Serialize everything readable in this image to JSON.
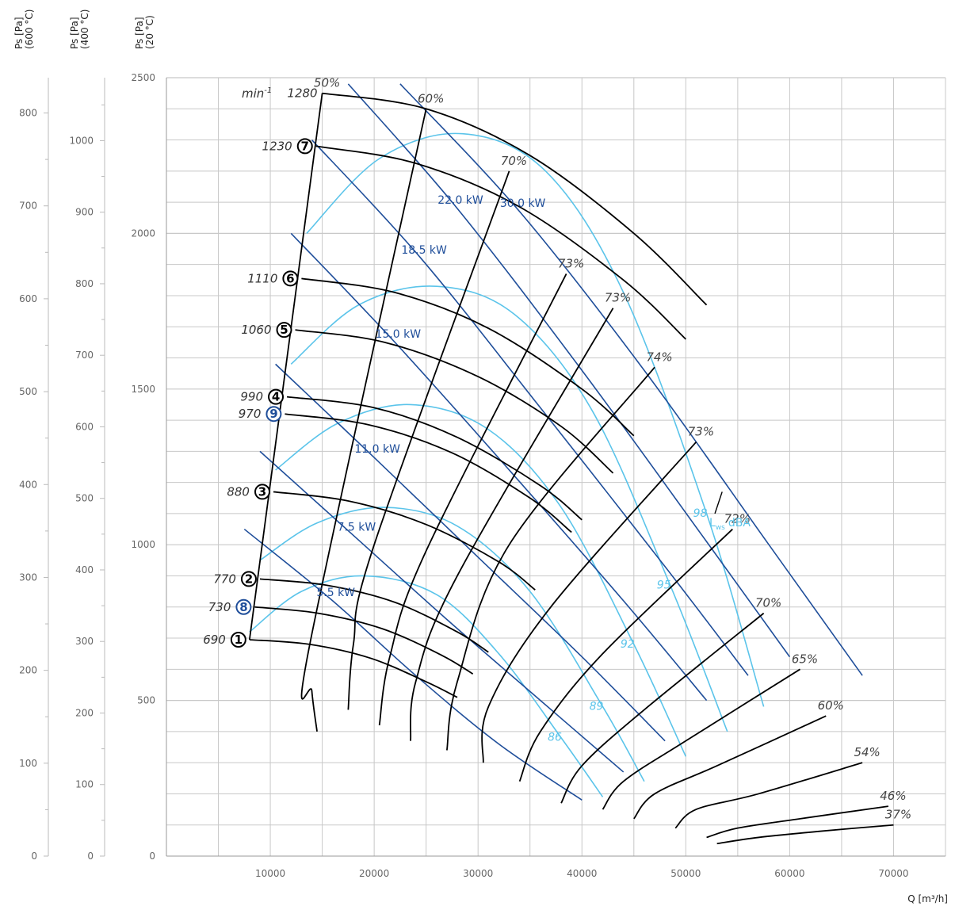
{
  "chart_data": {
    "type": "line",
    "title": "",
    "xlabel": "Q [m³/h]",
    "x_ticks": [
      "10000",
      "20000",
      "30000",
      "40000",
      "50000",
      "60000",
      "70000"
    ],
    "xlim": [
      0,
      75000
    ],
    "y_axes": [
      {
        "label_line1": "Ps [Pa]",
        "label_line2": "(20 °C)",
        "ylim": [
          0,
          2500
        ],
        "ticks": [
          "0",
          "500",
          "1000",
          "1500",
          "2000",
          "2500"
        ]
      },
      {
        "label_line1": "Ps [Pa]",
        "label_line2": "(400 °C)",
        "ylim": [
          0,
          1088
        ],
        "ticks": [
          "0",
          "100",
          "200",
          "300",
          "400",
          "500",
          "600",
          "700",
          "800",
          "900",
          "1000"
        ]
      },
      {
        "label_line1": "Ps [Pa]",
        "label_line2": "(600 °C)",
        "ylim": [
          0,
          838
        ],
        "ticks": [
          "0",
          "100",
          "200",
          "300",
          "400",
          "500",
          "600",
          "700",
          "800"
        ]
      }
    ],
    "rpm_unit": "min",
    "rpm_unit_exp": "-1",
    "rpm_curves": [
      {
        "marker": "",
        "rpm": "1280",
        "color": "#000000",
        "points": [
          [
            15000,
            2450
          ],
          [
            25000,
            2400
          ],
          [
            35000,
            2250
          ],
          [
            45000,
            2000
          ],
          [
            52000,
            1770
          ]
        ]
      },
      {
        "marker": "7",
        "rpm": "1230",
        "color": "#000000",
        "points": [
          [
            14400,
            2280
          ],
          [
            24000,
            2225
          ],
          [
            34000,
            2085
          ],
          [
            44000,
            1850
          ],
          [
            50000,
            1660
          ]
        ]
      },
      {
        "marker": "6",
        "rpm": "1110",
        "color": "#000000",
        "points": [
          [
            13000,
            1855
          ],
          [
            22000,
            1810
          ],
          [
            31000,
            1695
          ],
          [
            40000,
            1500
          ],
          [
            45000,
            1350
          ]
        ]
      },
      {
        "marker": "5",
        "rpm": "1060",
        "color": "#000000",
        "points": [
          [
            12400,
            1690
          ],
          [
            21000,
            1650
          ],
          [
            30000,
            1540
          ],
          [
            38000,
            1380
          ],
          [
            43000,
            1230
          ]
        ]
      },
      {
        "marker": "4",
        "rpm": "990",
        "color": "#000000",
        "points": [
          [
            11600,
            1475
          ],
          [
            20000,
            1440
          ],
          [
            28000,
            1345
          ],
          [
            36000,
            1190
          ],
          [
            40000,
            1080
          ]
        ]
      },
      {
        "marker": "9",
        "rpm": "970",
        "color": "#1f4e9a",
        "points": [
          [
            11400,
            1420
          ],
          [
            19500,
            1385
          ],
          [
            27500,
            1295
          ],
          [
            35000,
            1150
          ],
          [
            39000,
            1040
          ]
        ]
      },
      {
        "marker": "3",
        "rpm": "880",
        "color": "#000000",
        "points": [
          [
            10300,
            1170
          ],
          [
            17600,
            1140
          ],
          [
            25000,
            1065
          ],
          [
            32000,
            945
          ],
          [
            35500,
            855
          ]
        ]
      },
      {
        "marker": "2",
        "rpm": "770",
        "color": "#000000",
        "points": [
          [
            9000,
            890
          ],
          [
            15400,
            870
          ],
          [
            22000,
            815
          ],
          [
            28000,
            720
          ],
          [
            31000,
            655
          ]
        ]
      },
      {
        "marker": "8",
        "rpm": "730",
        "color": "#1f4e9a",
        "points": [
          [
            8500,
            800
          ],
          [
            14600,
            780
          ],
          [
            20800,
            730
          ],
          [
            26500,
            645
          ],
          [
            29500,
            585
          ]
        ]
      },
      {
        "marker": "1",
        "rpm": "690",
        "color": "#000000",
        "points": [
          [
            8000,
            695
          ],
          [
            13800,
            680
          ],
          [
            19700,
            635
          ],
          [
            25000,
            560
          ],
          [
            28000,
            510
          ]
        ]
      }
    ],
    "efficiency_curves": [
      {
        "label": "50%",
        "points": [
          [
            15000,
            2450
          ],
          [
            8000,
            695
          ]
        ]
      },
      {
        "label": "60%",
        "points": [
          [
            25000,
            2400
          ],
          [
            13800,
            680
          ],
          [
            14000,
            530
          ],
          [
            14500,
            400
          ]
        ]
      },
      {
        "label": "70%",
        "points": [
          [
            33000,
            2200
          ],
          [
            20000,
            1000
          ],
          [
            18000,
            680
          ],
          [
            17500,
            470
          ]
        ]
      },
      {
        "label": "73%",
        "points": [
          [
            38500,
            1870
          ],
          [
            25000,
            980
          ],
          [
            21500,
            640
          ],
          [
            20500,
            420
          ]
        ]
      },
      {
        "label": "73%",
        "points": [
          [
            43000,
            1760
          ],
          [
            28000,
            900
          ],
          [
            24000,
            560
          ],
          [
            23500,
            370
          ]
        ]
      },
      {
        "label": "74%",
        "points": [
          [
            47000,
            1570
          ],
          [
            33000,
            1000
          ],
          [
            28000,
            560
          ],
          [
            27000,
            340
          ]
        ]
      },
      {
        "label": "73%",
        "points": [
          [
            51000,
            1330
          ],
          [
            37000,
            800
          ],
          [
            31000,
            480
          ],
          [
            30500,
            300
          ]
        ]
      },
      {
        "label": "72%",
        "points": [
          [
            54500,
            1050
          ],
          [
            42000,
            650
          ],
          [
            36000,
            400
          ],
          [
            34000,
            240
          ]
        ]
      },
      {
        "label": "70%",
        "points": [
          [
            57500,
            780
          ],
          [
            46000,
            470
          ],
          [
            40000,
            290
          ],
          [
            38000,
            170
          ]
        ]
      },
      {
        "label": "65%",
        "points": [
          [
            61000,
            600
          ],
          [
            50000,
            370
          ],
          [
            44000,
            240
          ],
          [
            42000,
            150
          ]
        ]
      },
      {
        "label": "60%",
        "points": [
          [
            63500,
            450
          ],
          [
            53000,
            290
          ],
          [
            47000,
            200
          ],
          [
            45000,
            120
          ]
        ]
      },
      {
        "label": "54%",
        "points": [
          [
            67000,
            300
          ],
          [
            57000,
            200
          ],
          [
            51000,
            150
          ],
          [
            49000,
            90
          ]
        ]
      },
      {
        "label": "46%",
        "points": [
          [
            69500,
            160
          ],
          [
            61000,
            120
          ],
          [
            55000,
            90
          ],
          [
            52000,
            60
          ]
        ]
      },
      {
        "label": "37%",
        "points": [
          [
            70000,
            100
          ],
          [
            63000,
            80
          ],
          [
            57000,
            60
          ],
          [
            53000,
            40
          ]
        ]
      }
    ],
    "power_lines": [
      {
        "label": "5.5 kW",
        "points": [
          [
            7500,
            1050
          ],
          [
            16000,
            820
          ],
          [
            24000,
            580
          ],
          [
            32000,
            360
          ],
          [
            40000,
            180
          ]
        ]
      },
      {
        "label": "7.5 kW",
        "points": [
          [
            9000,
            1300
          ],
          [
            18000,
            1030
          ],
          [
            27000,
            760
          ],
          [
            36000,
            500
          ],
          [
            44000,
            270
          ]
        ]
      },
      {
        "label": "11.0 kW",
        "points": [
          [
            10500,
            1580
          ],
          [
            20000,
            1280
          ],
          [
            30000,
            960
          ],
          [
            40000,
            640
          ],
          [
            48000,
            370
          ]
        ]
      },
      {
        "label": "15.0 kW",
        "points": [
          [
            12000,
            2000
          ],
          [
            22000,
            1650
          ],
          [
            33000,
            1240
          ],
          [
            44000,
            820
          ],
          [
            52000,
            500
          ]
        ]
      },
      {
        "label": "18.5 kW",
        "points": [
          [
            14000,
            2300
          ],
          [
            24500,
            1920
          ],
          [
            36000,
            1440
          ],
          [
            48000,
            930
          ],
          [
            56000,
            580
          ]
        ]
      },
      {
        "label": "22.0 kW",
        "points": [
          [
            17500,
            2480
          ],
          [
            28000,
            2080
          ],
          [
            40000,
            1560
          ],
          [
            52000,
            1010
          ],
          [
            60000,
            640
          ]
        ]
      },
      {
        "label": "30.0 kW",
        "points": [
          [
            22500,
            2480
          ],
          [
            34000,
            2070
          ],
          [
            46000,
            1560
          ],
          [
            58000,
            1000
          ],
          [
            67000,
            580
          ]
        ]
      }
    ],
    "sound_curves": [
      {
        "label": "86",
        "points": [
          [
            8000,
            720
          ],
          [
            13000,
            850
          ],
          [
            19000,
            900
          ],
          [
            26000,
            840
          ],
          [
            32000,
            650
          ],
          [
            38000,
            380
          ],
          [
            42000,
            190
          ]
        ]
      },
      {
        "label": "89",
        "points": [
          [
            9000,
            950
          ],
          [
            14500,
            1070
          ],
          [
            21000,
            1120
          ],
          [
            28000,
            1060
          ],
          [
            35000,
            850
          ],
          [
            42000,
            480
          ],
          [
            46000,
            240
          ]
        ]
      },
      {
        "label": "92",
        "points": [
          [
            10500,
            1240
          ],
          [
            16500,
            1390
          ],
          [
            23500,
            1450
          ],
          [
            31000,
            1370
          ],
          [
            38000,
            1120
          ],
          [
            45000,
            680
          ],
          [
            50000,
            320
          ]
        ]
      },
      {
        "label": "95",
        "points": [
          [
            12000,
            1580
          ],
          [
            18500,
            1770
          ],
          [
            26000,
            1830
          ],
          [
            33500,
            1740
          ],
          [
            41000,
            1430
          ],
          [
            48500,
            870
          ],
          [
            54000,
            400
          ]
        ]
      },
      {
        "label": "98",
        "points": [
          [
            13500,
            2000
          ],
          [
            20500,
            2240
          ],
          [
            28500,
            2320
          ],
          [
            36500,
            2200
          ],
          [
            44000,
            1810
          ],
          [
            52000,
            1100
          ],
          [
            57500,
            480
          ]
        ]
      }
    ],
    "lws_label": "L",
    "lws_sub": "ws",
    "lws_unit": "dBA",
    "colors": {
      "black": "#000000",
      "power": "#1f4e9a",
      "sound": "#5bc4ea",
      "grid": "#c8c8c8",
      "marker_blue": "#1f4e9a"
    }
  }
}
